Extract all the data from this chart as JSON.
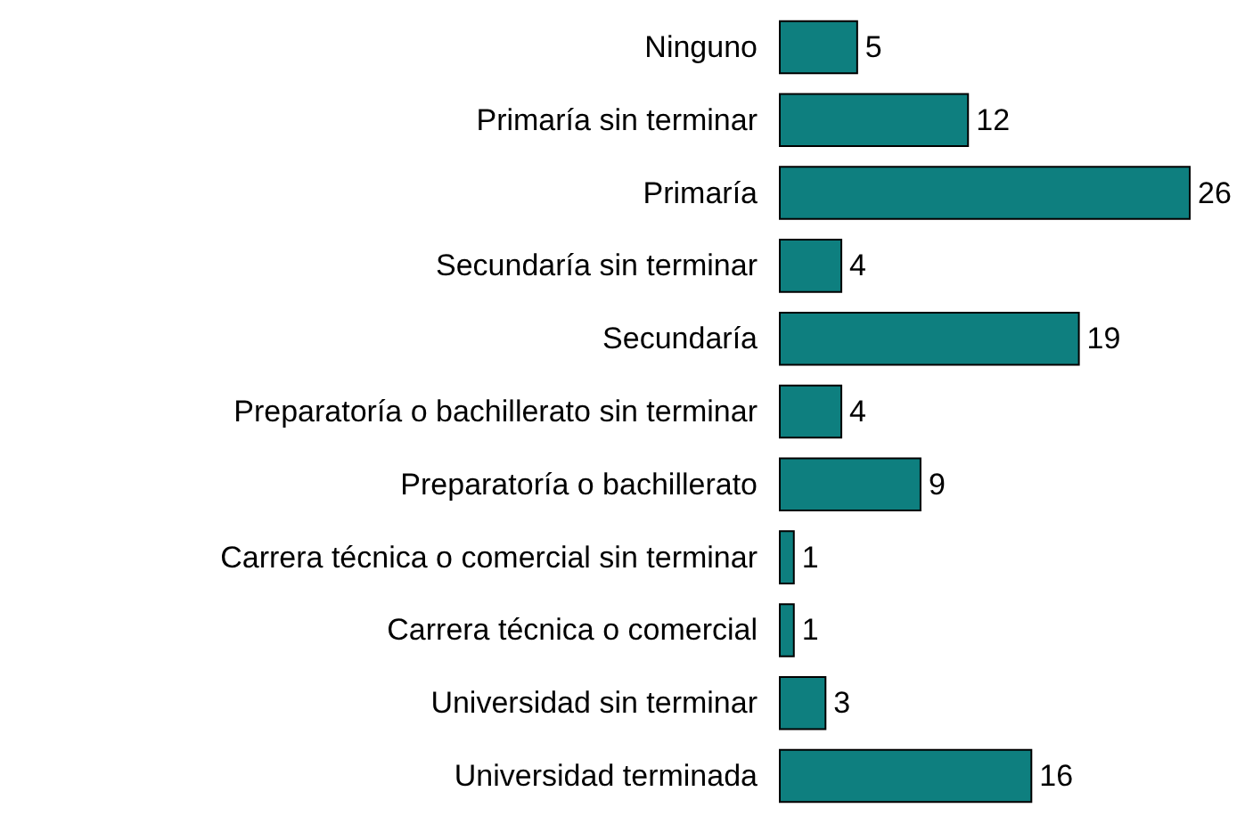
{
  "chart_data": {
    "type": "bar",
    "orientation": "horizontal",
    "categories": [
      "Ninguno",
      "Primaría sin terminar",
      "Primaría",
      "Secundaría sin terminar",
      "Secundaría",
      "Preparatoría o bachillerato sin terminar",
      "Preparatoría o bachillerato",
      "Carrera técnica o comercial sin terminar",
      "Carrera técnica o comercial",
      "Universidad sin terminar",
      "Universidad terminada"
    ],
    "values": [
      5,
      12,
      26,
      4,
      19,
      4,
      9,
      1,
      1,
      3,
      16
    ],
    "color": "#0e7f7f",
    "data_labels": true
  }
}
